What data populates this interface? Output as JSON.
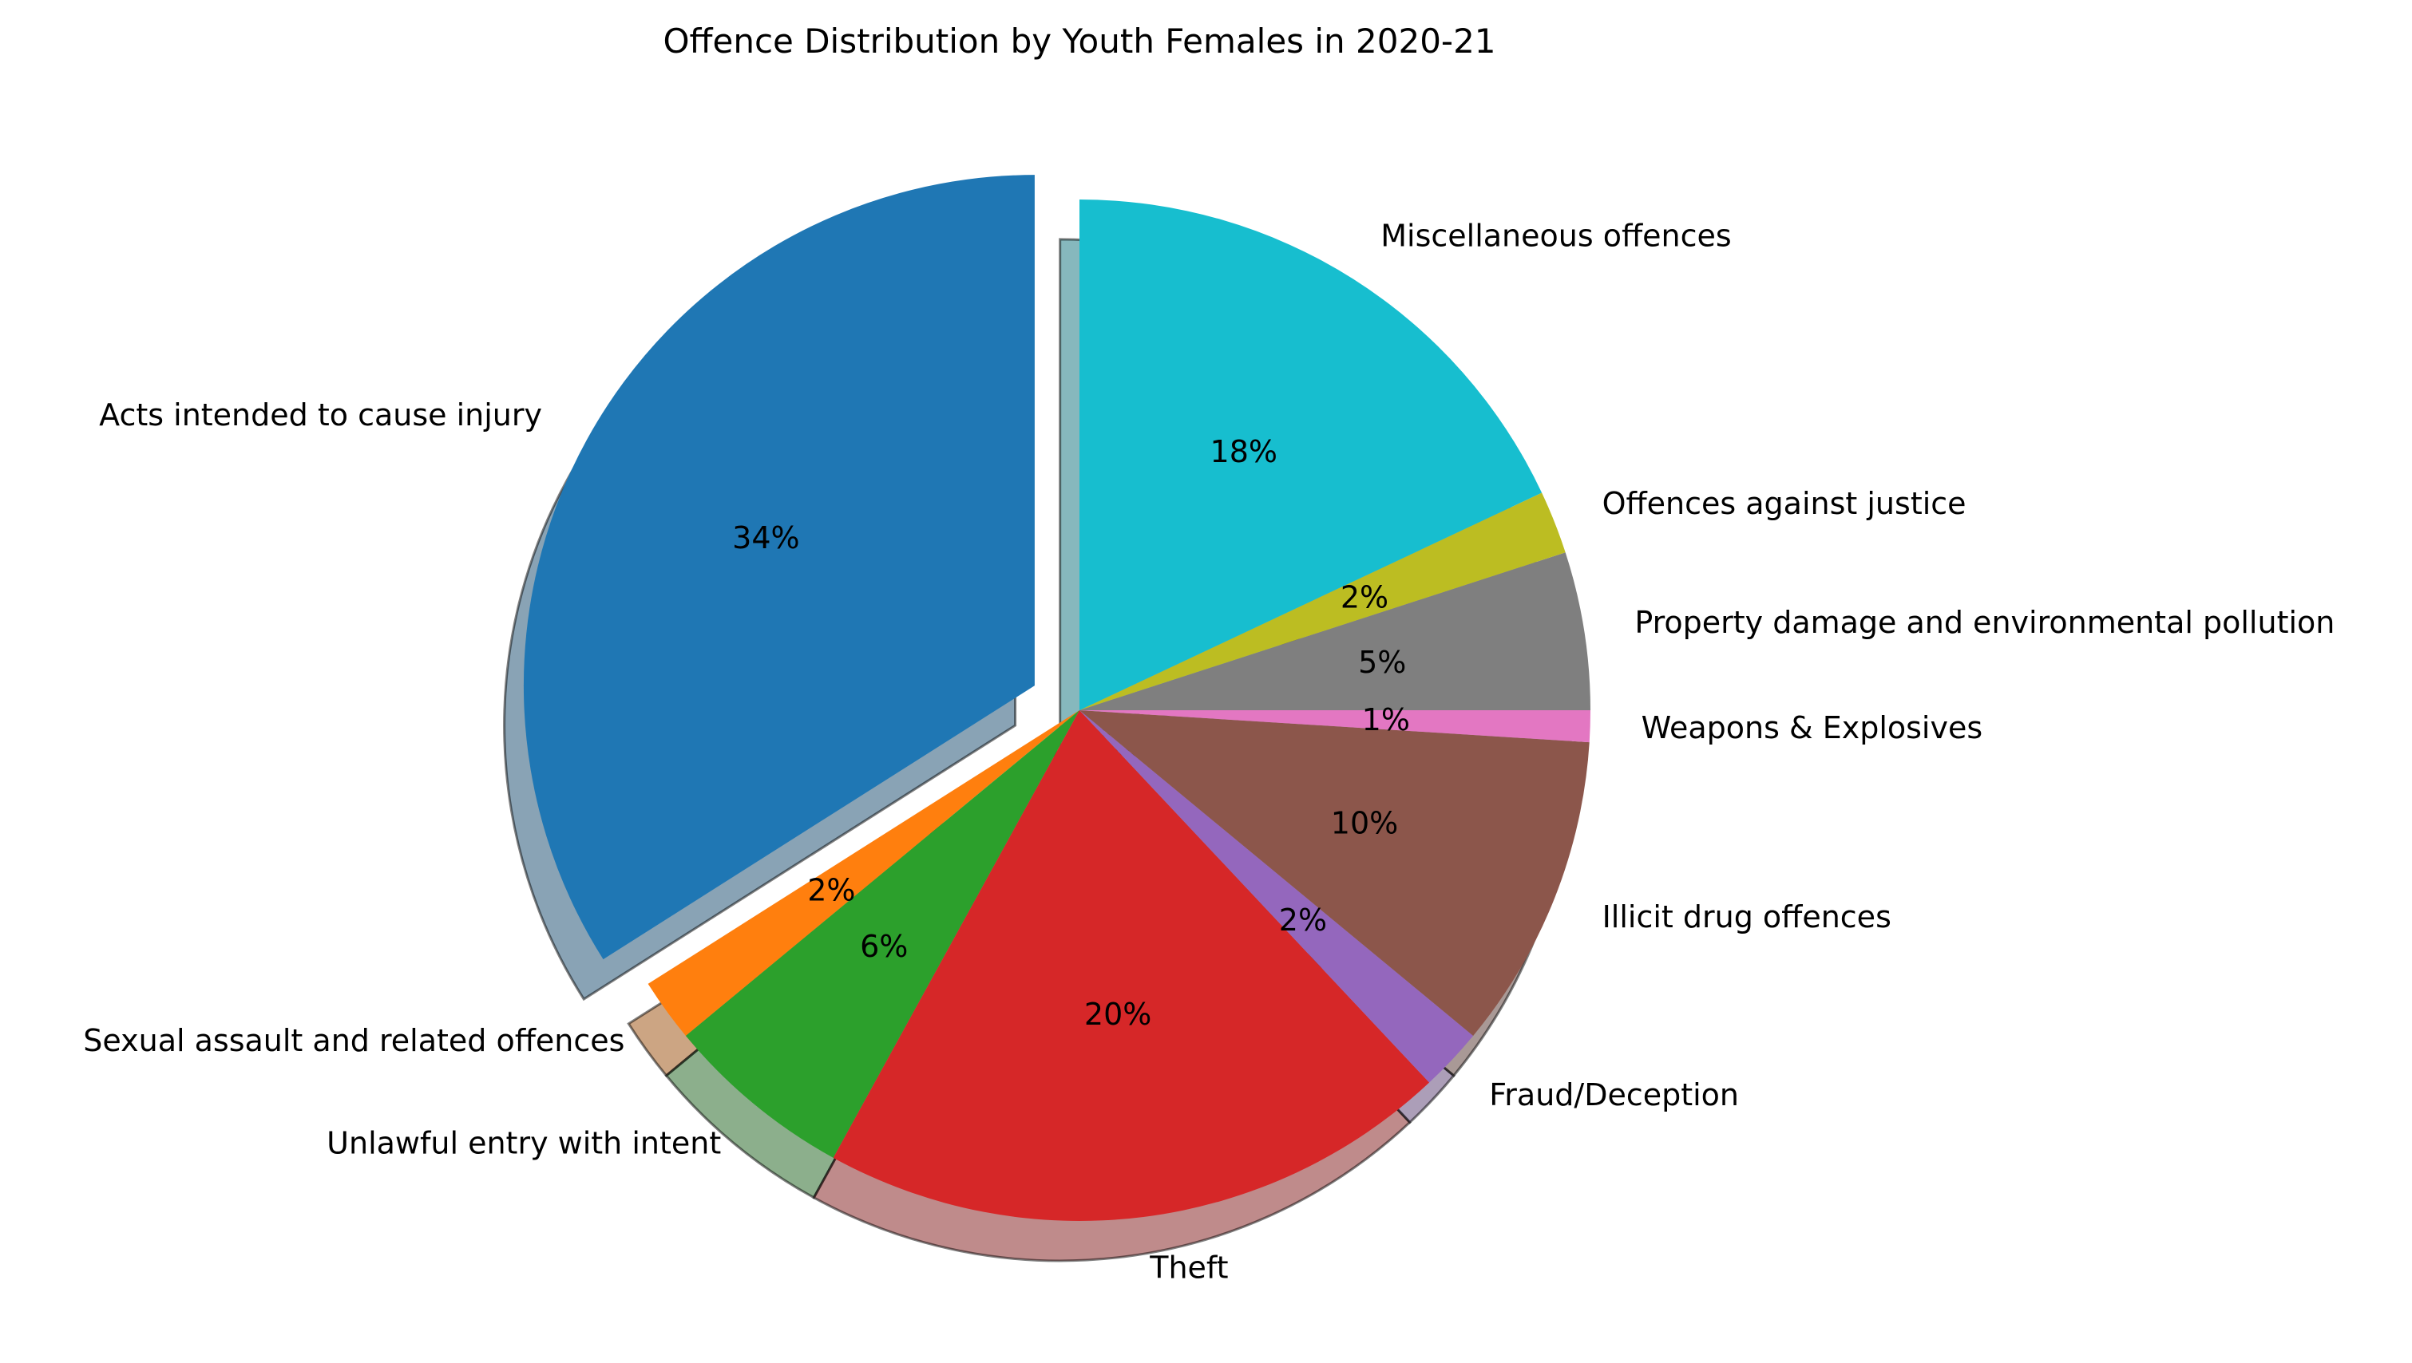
{
  "chart_data": {
    "type": "pie",
    "title": "Offence Distribution by Youth Females in 2020-21",
    "categories": [
      "Acts intended to cause injury",
      "Sexual assault and related offences",
      "Unlawful entry with intent",
      "Theft",
      "Fraud/Deception",
      "Illicit drug offences",
      "Weapons & Explosives",
      "Property damage and environmental pollution",
      "Offences against justice",
      "Miscellaneous offences"
    ],
    "values": [
      34,
      2,
      6,
      20,
      2,
      10,
      1,
      5,
      2,
      18
    ],
    "percent_labels": [
      "34%",
      "2%",
      "6%",
      "20%",
      "2%",
      "10%",
      "1%",
      "5%",
      "2%",
      "18%"
    ],
    "colors": [
      "#1f77b4",
      "#ff7f0e",
      "#2ca02c",
      "#d62728",
      "#9467bd",
      "#8c564b",
      "#e377c2",
      "#7f7f7f",
      "#bcbd22",
      "#17becf"
    ],
    "exploded": [
      true,
      false,
      false,
      false,
      false,
      false,
      false,
      false,
      false,
      false
    ],
    "shadow": true,
    "start_angle_deg": 90,
    "direction": "counterclockwise"
  }
}
